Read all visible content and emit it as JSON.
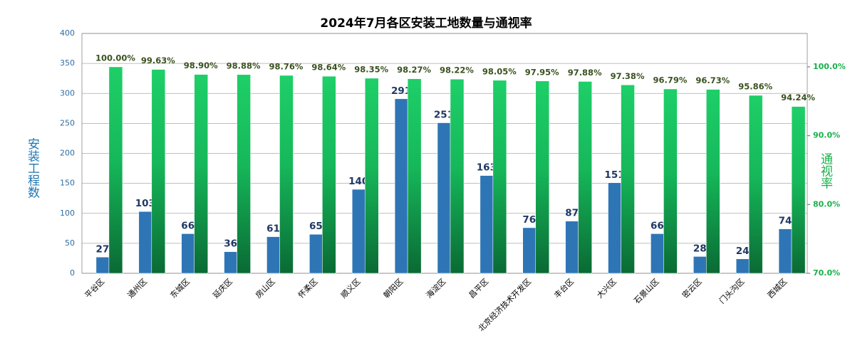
{
  "chart_data": {
    "type": "bar",
    "title": "2024年7月各区安装工地数量与通视率",
    "y_label": "安装工程数",
    "y2_label": "通视率",
    "categories": [
      "平谷区",
      "通州区",
      "东城区",
      "延庆区",
      "房山区",
      "怀柔区",
      "顺义区",
      "朝阳区",
      "海淀区",
      "昌平区",
      "北京经济技术开发区",
      "丰台区",
      "大兴区",
      "石景山区",
      "密云区",
      "门头沟区",
      "西城区"
    ],
    "series": [
      {
        "name": "安装工程数",
        "color": "#2e75b6",
        "values": [
          27,
          103,
          66,
          36,
          61,
          65,
          140,
          291,
          251,
          163,
          76,
          87,
          151,
          66,
          28,
          24,
          74
        ]
      },
      {
        "name": "通视率",
        "color": "#1ecf68",
        "axis": "y2",
        "values": [
          100.0,
          99.63,
          98.9,
          98.88,
          98.76,
          98.64,
          98.35,
          98.27,
          98.22,
          98.05,
          97.95,
          97.88,
          97.38,
          96.79,
          96.73,
          95.86,
          94.24
        ],
        "value_labels": [
          "100.00%",
          "99.63%",
          "98.90%",
          "98.88%",
          "98.76%",
          "98.64%",
          "98.35%",
          "98.27%",
          "98.22%",
          "98.05%",
          "97.95%",
          "97.88%",
          "97.38%",
          "96.79%",
          "96.73%",
          "95.86%",
          "94.24%"
        ]
      }
    ],
    "ylim": [
      0,
      400
    ],
    "yticks": [
      0,
      50,
      100,
      150,
      200,
      250,
      300,
      350,
      400
    ],
    "y2lim": [
      70,
      104.86
    ],
    "y2ticks": [
      {
        "value": 70,
        "label": "70.0%"
      },
      {
        "value": 80,
        "label": "80.0%"
      },
      {
        "value": 90,
        "label": "90.0%"
      },
      {
        "value": 100,
        "label": "100.0%"
      }
    ],
    "grid": true
  }
}
